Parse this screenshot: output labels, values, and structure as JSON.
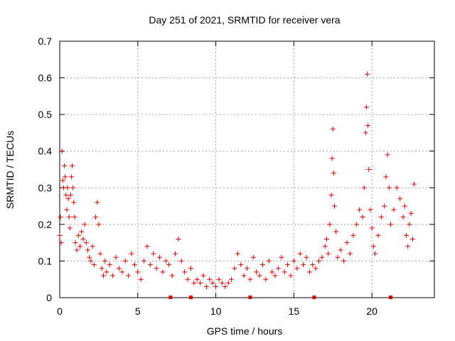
{
  "chart_data": {
    "type": "scatter",
    "title": "Day 251 of 2021, SRMTID for receiver vera",
    "xlabel": "GPS time / hours",
    "ylabel": "SRMTID / TECUs",
    "xlim": [
      0,
      24
    ],
    "ylim": [
      0,
      0.7
    ],
    "x_ticks": [
      0,
      5,
      10,
      15,
      20
    ],
    "x_tick_labels": [
      "0",
      "5",
      "10",
      "15",
      "20"
    ],
    "y_ticks": [
      0,
      0.1,
      0.2,
      0.3,
      0.4,
      0.5,
      0.6,
      0.7
    ],
    "y_tick_labels": [
      "0",
      "0.1",
      "0.2",
      "0.3",
      "0.4",
      "0.5",
      "0.6",
      "0.7"
    ],
    "grid": true,
    "marker": "+",
    "colors": {
      "series": "#e00000",
      "grid": "#a0a0a0",
      "axis": "#000000"
    },
    "series": [
      {
        "name": "SRMTID",
        "points": [
          [
            0.0,
            0.17
          ],
          [
            0.05,
            0.22
          ],
          [
            0.1,
            0.15
          ],
          [
            0.15,
            0.4
          ],
          [
            0.2,
            0.32
          ],
          [
            0.25,
            0.3
          ],
          [
            0.3,
            0.36
          ],
          [
            0.35,
            0.33
          ],
          [
            0.4,
            0.28
          ],
          [
            0.45,
            0.24
          ],
          [
            0.5,
            0.3
          ],
          [
            0.55,
            0.27
          ],
          [
            0.6,
            0.22
          ],
          [
            0.65,
            0.19
          ],
          [
            0.7,
            0.28
          ],
          [
            0.75,
            0.33
          ],
          [
            0.8,
            0.36
          ],
          [
            0.85,
            0.3
          ],
          [
            0.9,
            0.26
          ],
          [
            0.95,
            0.22
          ],
          [
            1.0,
            0.15
          ],
          [
            1.1,
            0.13
          ],
          [
            1.2,
            0.17
          ],
          [
            1.3,
            0.14
          ],
          [
            1.4,
            0.18
          ],
          [
            1.5,
            0.16
          ],
          [
            1.6,
            0.2
          ],
          [
            1.7,
            0.15
          ],
          [
            1.8,
            0.13
          ],
          [
            1.9,
            0.11
          ],
          [
            2.0,
            0.1
          ],
          [
            2.1,
            0.14
          ],
          [
            2.2,
            0.09
          ],
          [
            2.3,
            0.22
          ],
          [
            2.4,
            0.26
          ],
          [
            2.5,
            0.2
          ],
          [
            2.6,
            0.12
          ],
          [
            2.7,
            0.08
          ],
          [
            2.8,
            0.06
          ],
          [
            2.9,
            0.1
          ],
          [
            3.0,
            0.07
          ],
          [
            3.2,
            0.09
          ],
          [
            3.4,
            0.06
          ],
          [
            3.6,
            0.11
          ],
          [
            3.8,
            0.08
          ],
          [
            4.0,
            0.07
          ],
          [
            4.2,
            0.1
          ],
          [
            4.4,
            0.06
          ],
          [
            4.6,
            0.12
          ],
          [
            4.8,
            0.09
          ],
          [
            5.0,
            0.07
          ],
          [
            5.2,
            0.05
          ],
          [
            5.4,
            0.1
          ],
          [
            5.6,
            0.14
          ],
          [
            5.8,
            0.09
          ],
          [
            6.0,
            0.12
          ],
          [
            6.2,
            0.08
          ],
          [
            6.4,
            0.11
          ],
          [
            6.6,
            0.07
          ],
          [
            6.8,
            0.1
          ],
          [
            7.0,
            0.09
          ],
          [
            7.2,
            0.06
          ],
          [
            7.4,
            0.12
          ],
          [
            7.6,
            0.16
          ],
          [
            7.8,
            0.1
          ],
          [
            8.0,
            0.07
          ],
          [
            8.2,
            0.05
          ],
          [
            8.4,
            0.08
          ],
          [
            8.6,
            0.04
          ],
          [
            8.8,
            0.05
          ],
          [
            9.0,
            0.04
          ],
          [
            9.2,
            0.06
          ],
          [
            9.4,
            0.03
          ],
          [
            9.6,
            0.05
          ],
          [
            9.8,
            0.04
          ],
          [
            10.0,
            0.03
          ],
          [
            10.2,
            0.05
          ],
          [
            10.4,
            0.04
          ],
          [
            10.6,
            0.03
          ],
          [
            10.8,
            0.04
          ],
          [
            11.0,
            0.05
          ],
          [
            11.2,
            0.08
          ],
          [
            11.4,
            0.12
          ],
          [
            11.6,
            0.09
          ],
          [
            11.8,
            0.06
          ],
          [
            12.0,
            0.08
          ],
          [
            12.2,
            0.05
          ],
          [
            12.4,
            0.11
          ],
          [
            12.6,
            0.07
          ],
          [
            12.8,
            0.06
          ],
          [
            13.0,
            0.09
          ],
          [
            13.2,
            0.05
          ],
          [
            13.4,
            0.1
          ],
          [
            13.6,
            0.07
          ],
          [
            13.8,
            0.06
          ],
          [
            14.0,
            0.08
          ],
          [
            14.2,
            0.11
          ],
          [
            14.4,
            0.07
          ],
          [
            14.6,
            0.09
          ],
          [
            14.8,
            0.06
          ],
          [
            15.0,
            0.1
          ],
          [
            15.2,
            0.08
          ],
          [
            15.4,
            0.12
          ],
          [
            15.6,
            0.09
          ],
          [
            15.8,
            0.11
          ],
          [
            16.0,
            0.07
          ],
          [
            16.2,
            0.09
          ],
          [
            16.4,
            0.08
          ],
          [
            16.6,
            0.1
          ],
          [
            16.8,
            0.11
          ],
          [
            17.0,
            0.14
          ],
          [
            17.1,
            0.16
          ],
          [
            17.2,
            0.12
          ],
          [
            17.3,
            0.2
          ],
          [
            17.4,
            0.28
          ],
          [
            17.45,
            0.38
          ],
          [
            17.5,
            0.46
          ],
          [
            17.55,
            0.34
          ],
          [
            17.6,
            0.25
          ],
          [
            17.7,
            0.18
          ],
          [
            17.8,
            0.11
          ],
          [
            18.0,
            0.13
          ],
          [
            18.2,
            0.1
          ],
          [
            18.4,
            0.15
          ],
          [
            18.6,
            0.12
          ],
          [
            18.8,
            0.17
          ],
          [
            19.0,
            0.2
          ],
          [
            19.2,
            0.24
          ],
          [
            19.4,
            0.22
          ],
          [
            19.5,
            0.3
          ],
          [
            19.6,
            0.45
          ],
          [
            19.65,
            0.52
          ],
          [
            19.7,
            0.61
          ],
          [
            19.75,
            0.47
          ],
          [
            19.8,
            0.35
          ],
          [
            19.9,
            0.24
          ],
          [
            20.0,
            0.19
          ],
          [
            20.1,
            0.14
          ],
          [
            20.2,
            0.12
          ],
          [
            20.4,
            0.17
          ],
          [
            20.6,
            0.22
          ],
          [
            20.8,
            0.25
          ],
          [
            20.9,
            0.33
          ],
          [
            21.0,
            0.39
          ],
          [
            21.1,
            0.3
          ],
          [
            21.2,
            0.2
          ],
          [
            21.4,
            0.24
          ],
          [
            21.6,
            0.3
          ],
          [
            21.8,
            0.27
          ],
          [
            22.0,
            0.22
          ],
          [
            22.1,
            0.25
          ],
          [
            22.2,
            0.17
          ],
          [
            22.3,
            0.14
          ],
          [
            22.4,
            0.2
          ],
          [
            22.5,
            0.23
          ],
          [
            22.6,
            0.16
          ],
          [
            22.7,
            0.31
          ]
        ]
      }
    ],
    "gap_markers_x": [
      7.1,
      8.4,
      12.2,
      16.3,
      21.2
    ]
  }
}
